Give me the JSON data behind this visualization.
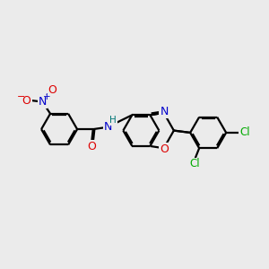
{
  "bg_color": "#ebebeb",
  "bond_color": "#000000",
  "bond_lw": 1.6,
  "dbo": 0.055,
  "atom_colors": {
    "N": "#0000cc",
    "O": "#dd0000",
    "Cl": "#00aa00",
    "H": "#007777",
    "C": "#000000"
  },
  "fs": 8.5
}
